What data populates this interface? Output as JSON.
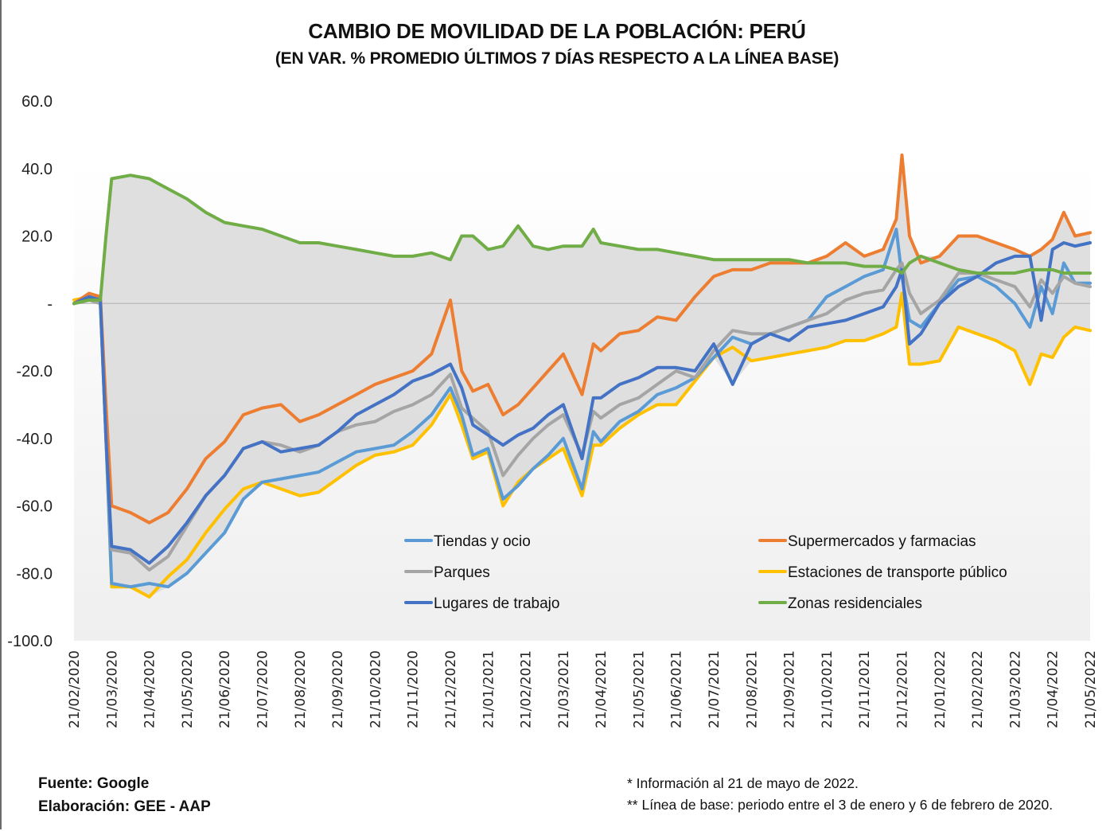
{
  "chart_data": {
    "type": "line",
    "title": "CAMBIO DE MOVILIDAD DE LA POBLACIÓN: PERÚ",
    "subtitle": "(EN VAR. % PROMEDIO ÚLTIMOS 7 DÍAS RESPECTO A LA LÍNEA BASE)",
    "xlabel": "",
    "ylabel": "",
    "ylim": [
      -100,
      60
    ],
    "yticks": [
      60,
      40,
      20,
      0,
      -20,
      -40,
      -60,
      -80,
      -100
    ],
    "ytick_labels": [
      "60.0",
      "40.0",
      "20.0",
      "-",
      "-20.0",
      "-40.0",
      "-60.0",
      "-80.0",
      "-100.0"
    ],
    "xtick_labels": [
      "21/02/2020",
      "21/03/2020",
      "21/04/2020",
      "21/05/2020",
      "21/06/2020",
      "21/07/2020",
      "21/08/2020",
      "21/09/2020",
      "21/10/2020",
      "21/11/2020",
      "21/12/2020",
      "21/01/2021",
      "21/02/2021",
      "21/03/2021",
      "21/04/2021",
      "21/05/2021",
      "21/06/2021",
      "21/07/2021",
      "21/08/2021",
      "21/09/2021",
      "21/10/2021",
      "21/11/2021",
      "21/12/2021",
      "21/01/2022",
      "21/02/2022",
      "21/03/2022",
      "21/04/2022",
      "21/05/2022"
    ],
    "x_unit": "months since 21/02/2020",
    "x": [
      0,
      0.4,
      0.7,
      0.85,
      1.0,
      1.5,
      2.0,
      2.5,
      3.0,
      3.5,
      4.0,
      4.5,
      5.0,
      5.5,
      6.0,
      6.5,
      7.0,
      7.5,
      8.0,
      8.5,
      9.0,
      9.5,
      10.0,
      10.3,
      10.6,
      11.0,
      11.4,
      11.8,
      12.2,
      12.6,
      13.0,
      13.5,
      13.8,
      14.0,
      14.5,
      15.0,
      15.5,
      16.0,
      16.5,
      17.0,
      17.5,
      18.0,
      18.5,
      19.0,
      19.5,
      20.0,
      20.5,
      21.0,
      21.5,
      21.85,
      22.0,
      22.2,
      22.5,
      23.0,
      23.5,
      24.0,
      24.5,
      25.0,
      25.4,
      25.7,
      26.0,
      26.3,
      26.6,
      27.0
    ],
    "series": [
      {
        "name": "Tiendas y ocio",
        "color": "#5b9bd5",
        "values": [
          0,
          2,
          1,
          -40,
          -83,
          -84,
          -83,
          -84,
          -80,
          -74,
          -68,
          -58,
          -53,
          -52,
          -51,
          -50,
          -47,
          -44,
          -43,
          -42,
          -38,
          -33,
          -25,
          -33,
          -45,
          -43,
          -58,
          -54,
          -49,
          -45,
          -40,
          -55,
          -38,
          -41,
          -35,
          -32,
          -27,
          -25,
          -22,
          -16,
          -10,
          -12,
          -9,
          -7,
          -5,
          2,
          5,
          8,
          10,
          22,
          8,
          -5,
          -7,
          0,
          7,
          8,
          5,
          0,
          -7,
          5,
          -3,
          12,
          6,
          6
        ]
      },
      {
        "name": "Supermercados y farmacias",
        "color": "#ed7d31",
        "values": [
          0,
          3,
          2,
          -30,
          -60,
          -62,
          -65,
          -62,
          -55,
          -46,
          -41,
          -33,
          -31,
          -30,
          -35,
          -33,
          -30,
          -27,
          -24,
          -22,
          -20,
          -15,
          1,
          -20,
          -26,
          -24,
          -33,
          -30,
          -25,
          -20,
          -15,
          -27,
          -12,
          -14,
          -9,
          -8,
          -4,
          -5,
          2,
          8,
          10,
          10,
          12,
          12,
          12,
          14,
          18,
          14,
          16,
          25,
          44,
          20,
          12,
          14,
          20,
          20,
          18,
          16,
          14,
          16,
          19,
          27,
          20,
          21
        ]
      },
      {
        "name": "Parques",
        "color": "#a5a5a5",
        "values": [
          0,
          1,
          0,
          -40,
          -73,
          -74,
          -79,
          -75,
          -66,
          -57,
          -51,
          -43,
          -41,
          -42,
          -44,
          -42,
          -38,
          -36,
          -35,
          -32,
          -30,
          -27,
          -21,
          -31,
          -34,
          -38,
          -51,
          -45,
          -40,
          -36,
          -33,
          -45,
          -32,
          -34,
          -30,
          -28,
          -24,
          -20,
          -22,
          -14,
          -8,
          -9,
          -9,
          -7,
          -5,
          -3,
          1,
          3,
          4,
          10,
          12,
          3,
          -3,
          1,
          9,
          9,
          7,
          5,
          -1,
          7,
          3,
          8,
          6,
          5
        ]
      },
      {
        "name": "Estaciones de transporte público",
        "color": "#ffc000",
        "values": [
          1,
          2,
          0,
          -40,
          -84,
          -84,
          -87,
          -81,
          -76,
          -68,
          -61,
          -55,
          -53,
          -55,
          -57,
          -56,
          -52,
          -48,
          -45,
          -44,
          -42,
          -36,
          -27,
          -36,
          -46,
          -44,
          -60,
          -53,
          -49,
          -46,
          -43,
          -57,
          -42,
          -42,
          -37,
          -33,
          -30,
          -30,
          -23,
          -16,
          -13,
          -17,
          -16,
          -15,
          -14,
          -13,
          -11,
          -11,
          -9,
          -7,
          3,
          -18,
          -18,
          -17,
          -7,
          -9,
          -11,
          -14,
          -24,
          -15,
          -16,
          -10,
          -7,
          -8
        ]
      },
      {
        "name": "Lugares de trabajo",
        "color": "#4472c4",
        "values": [
          0,
          2,
          1,
          -40,
          -72,
          -73,
          -77,
          -72,
          -65,
          -57,
          -51,
          -43,
          -41,
          -44,
          -43,
          -42,
          -38,
          -33,
          -30,
          -27,
          -23,
          -21,
          -18,
          -25,
          -36,
          -39,
          -42,
          -39,
          -37,
          -33,
          -30,
          -46,
          -28,
          -28,
          -24,
          -22,
          -19,
          -19,
          -20,
          -12,
          -24,
          -12,
          -9,
          -11,
          -7,
          -6,
          -5,
          -3,
          -1,
          5,
          10,
          -12,
          -9,
          0,
          5,
          8,
          12,
          14,
          14,
          -5,
          16,
          18,
          17,
          18
        ]
      },
      {
        "name": "Zonas residenciales",
        "color": "#70ad47",
        "values": [
          0,
          1,
          1,
          20,
          37,
          38,
          37,
          34,
          31,
          27,
          24,
          23,
          22,
          20,
          18,
          18,
          17,
          16,
          15,
          14,
          14,
          15,
          13,
          20,
          20,
          16,
          17,
          23,
          17,
          16,
          17,
          17,
          22,
          18,
          17,
          16,
          16,
          15,
          14,
          13,
          13,
          13,
          13,
          13,
          12,
          12,
          12,
          11,
          11,
          10,
          9,
          12,
          14,
          12,
          10,
          9,
          9,
          9,
          10,
          10,
          10,
          9,
          9,
          9
        ]
      }
    ],
    "legend": {
      "placement": "bottom-center-inside",
      "entries": [
        "Tiendas y ocio",
        "Supermercados y farmacias",
        "Parques",
        "Estaciones de transporte público",
        "Lugares de trabajo",
        "Zonas residenciales"
      ]
    },
    "grid": false,
    "zero_line": true
  },
  "footer": {
    "source": "Fuente: Google",
    "elaboration": "Elaboración: GEE - AAP",
    "note1": "* Información al 21 de mayo de 2022.",
    "note2": "** Línea de base: periodo entre el 3 de enero y 6 de febrero de 2020."
  }
}
